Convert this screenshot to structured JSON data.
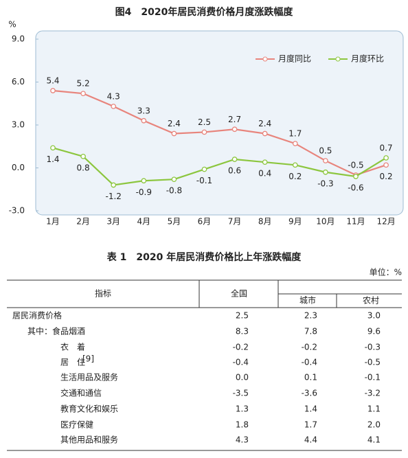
{
  "chart_data": {
    "type": "line",
    "title": "图4　2020年居民消费价格月度涨跌幅度",
    "y_unit": "%",
    "categories": [
      "1月",
      "2月",
      "3月",
      "4月",
      "5月",
      "6月",
      "7月",
      "8月",
      "9月",
      "10月",
      "11月",
      "12月"
    ],
    "series": [
      {
        "name": "月度同比",
        "color": "#e8847c",
        "values": [
          5.4,
          5.2,
          4.3,
          3.3,
          2.4,
          2.5,
          2.7,
          2.4,
          1.7,
          0.5,
          -0.5,
          0.2
        ]
      },
      {
        "name": "月度环比",
        "color": "#8cc63e",
        "values": [
          1.4,
          0.8,
          -1.2,
          -0.9,
          -0.8,
          -0.1,
          0.6,
          0.4,
          0.2,
          -0.3,
          -0.6,
          0.7
        ]
      }
    ],
    "ylim": [
      -3,
      9
    ],
    "yticks": [
      {
        "value": 9,
        "label": "9.0"
      },
      {
        "value": 6,
        "label": "6.0"
      },
      {
        "value": 3,
        "label": "3.0"
      },
      {
        "value": 0,
        "label": "0.0"
      },
      {
        "value": -3,
        "label": "-3.0"
      }
    ],
    "grid": false,
    "legend": "upper right"
  },
  "table": {
    "title": "表 1　2020 年居民消费价格比上年涨跌幅度",
    "unit": "单位：%",
    "header": [
      "指标",
      "全国",
      "城市",
      "农村"
    ],
    "rows": [
      {
        "label": "居民消费价格",
        "values": [
          "2.5",
          "2.3",
          "3.0"
        ]
      },
      {
        "label": "其中：食品烟酒",
        "values": [
          "8.3",
          "7.8",
          "9.6"
        ]
      },
      {
        "label": "衣　着",
        "values": [
          "-0.2",
          "-0.2",
          "-0.3"
        ]
      },
      {
        "label": "居　住",
        "sup": "[9]",
        "values": [
          "-0.4",
          "-0.4",
          "-0.5"
        ]
      },
      {
        "label": "生活用品及服务",
        "values": [
          "0.0",
          "0.1",
          "-0.1"
        ]
      },
      {
        "label": "交通和通信",
        "values": [
          "-3.5",
          "-3.6",
          "-3.2"
        ]
      },
      {
        "label": "教育文化和娱乐",
        "values": [
          "1.3",
          "1.4",
          "1.1"
        ]
      },
      {
        "label": "医疗保健",
        "values": [
          "1.8",
          "1.7",
          "2.0"
        ]
      },
      {
        "label": "其他用品和服务",
        "values": [
          "4.3",
          "4.4",
          "4.1"
        ]
      }
    ]
  }
}
